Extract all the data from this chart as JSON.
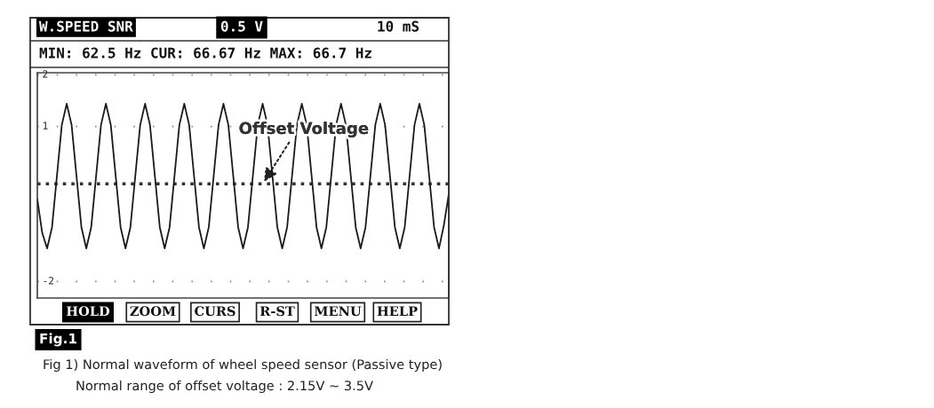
{
  "chart_data": {
    "type": "line",
    "title": "W.SPEED SNR",
    "subtitle": "MIN: 62.5 Hz CUR: 66.67 Hz MAX: 66.7 Hz",
    "annotations": [
      "0.5 V",
      "10 mS",
      "HOLD",
      "ZOOM",
      "CURS",
      "R-ST",
      "MENU",
      "HELP",
      "Fig.1",
      "Fig 1) Normal waveform of wheel speed sensor (Passive type)",
      "Normal range of offset voltage : 2.15V ~ 3.5V"
    ],
    "categories": [
      null,
      null,
      null,
      null,
      null,
      null,
      null,
      null,
      null,
      null,
      null,
      null,
      null,
      null,
      null,
      null,
      null,
      null,
      null,
      null,
      null,
      null,
      null,
      null,
      null,
      null,
      null,
      null,
      null,
      null,
      null,
      null,
      null,
      null,
      null,
      null,
      null,
      null,
      null,
      null,
      null,
      null,
      null,
      null,
      null,
      null,
      null,
      null,
      null,
      null,
      null,
      null,
      null,
      null,
      null,
      null,
      null,
      null,
      null,
      null,
      null,
      null,
      null,
      null,
      null,
      null,
      null,
      null,
      null,
      null,
      null,
      null,
      null,
      null,
      null,
      null,
      null,
      null,
      null,
      null,
      null,
      null,
      null,
      null,
      null
    ],
    "series": [
      {
        "color": "#1a1a1a",
        "values": [
          -0.41,
          -1.06,
          -1.36,
          -0.95,
          0.04,
          1.03,
          1.44,
          1.03,
          0.04,
          -0.95,
          -1.36,
          -0.95,
          0.04,
          1.03,
          1.44,
          1.03,
          0.04,
          -0.95,
          -1.36,
          -0.95,
          0.04,
          1.03,
          1.44,
          1.03,
          0.04,
          -0.95,
          -1.36,
          -0.95,
          0.04,
          1.03,
          1.44,
          1.03,
          0.04,
          -0.95,
          -1.36,
          -0.95,
          0.04,
          1.03,
          1.44,
          1.03,
          0.04,
          -0.95,
          -1.36,
          -0.95,
          0.04,
          1.03,
          1.44,
          1.03,
          0.04,
          -0.95,
          -1.36,
          -0.95,
          0.04,
          1.03,
          1.44,
          1.03,
          0.04,
          -0.95,
          -1.36,
          -0.95,
          0.04,
          1.03,
          1.44,
          1.03,
          0.04,
          -0.95,
          -1.36,
          -0.95,
          0.04,
          1.03,
          1.44,
          1.03,
          0.04,
          -0.95,
          -1.36,
          -0.95,
          0.04,
          1.03,
          1.44,
          1.03,
          0.04,
          -0.95,
          -1.36,
          -0.91,
          -0.31
        ]
      }
    ],
    "ylim": [
      -2.32,
      2.04
    ],
    "yticks": [
      -2,
      1,
      2
    ],
    "ref_lines": [
      {
        "axis": "y",
        "value": -0.11,
        "label": "Offset Voltage",
        "color": "#333333",
        "line_style": "dotted"
      }
    ],
    "line_style": "solid",
    "marker": "none",
    "grid": "y",
    "legend": false
  }
}
